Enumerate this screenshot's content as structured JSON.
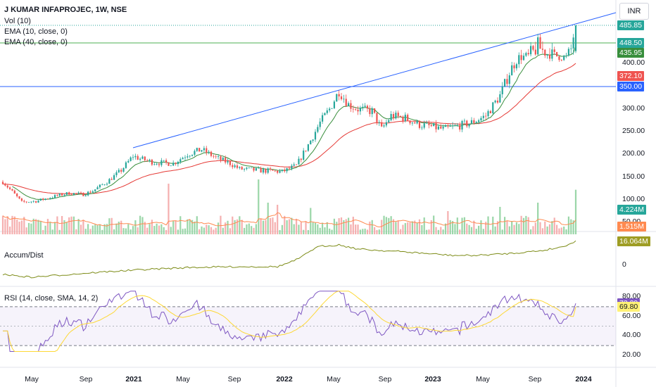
{
  "header": {
    "title": "J KUMAR INFAPROJEC, 1W, NSE",
    "vol": "Vol (10)",
    "ema10": "EMA (10, close, 0)",
    "ema40": "EMA (40, close, 0)",
    "currency": "INR"
  },
  "price_axis": {
    "ticks": [
      {
        "label": "400.00",
        "v": 400
      },
      {
        "label": "300.00",
        "v": 300
      },
      {
        "label": "250.00",
        "v": 250
      },
      {
        "label": "200.00",
        "v": 200
      },
      {
        "label": "150.00",
        "v": 150
      },
      {
        "label": "100.00",
        "v": 100
      },
      {
        "label": "50.00",
        "v": 50
      }
    ],
    "tags": [
      {
        "label": "485.85",
        "v": 485.85,
        "color": "#26a69a"
      },
      {
        "label": "448.50",
        "v": 448.5,
        "color": "#26a69a"
      },
      {
        "label": "435.95",
        "v": 435.95,
        "color": "#388e3c"
      },
      {
        "label": "372.10",
        "v": 372.1,
        "color": "#ef5350"
      },
      {
        "label": "350.00",
        "v": 350,
        "color": "#2962ff"
      }
    ],
    "volume_tags": [
      {
        "label": "4.224M",
        "color": "#26a69a"
      },
      {
        "label": "1.515M",
        "color": "#ff8a50"
      }
    ]
  },
  "accum": {
    "label": "Accum/Dist",
    "tag": "16.064M",
    "tag_color": "#9e9d24",
    "zero_label": "0"
  },
  "rsi": {
    "label": "RSI (14, close, SMA, 14, 2)",
    "ticks": [
      {
        "label": "80.00",
        "v": 80
      },
      {
        "label": "60.00",
        "v": 60
      },
      {
        "label": "40.00",
        "v": 40
      },
      {
        "label": "20.00",
        "v": 20
      }
    ],
    "tags": [
      {
        "label": "73.39",
        "v": 73.39,
        "color": "#7e57c2"
      },
      {
        "label": "69.80",
        "v": 69.8,
        "color": "#fff176",
        "text": "#131722"
      }
    ]
  },
  "time_axis": [
    {
      "label": "May",
      "bold": false
    },
    {
      "label": "Sep",
      "bold": false
    },
    {
      "label": "2021",
      "bold": true
    },
    {
      "label": "May",
      "bold": false
    },
    {
      "label": "Sep",
      "bold": false
    },
    {
      "label": "2022",
      "bold": true
    },
    {
      "label": "May",
      "bold": false
    },
    {
      "label": "Sep",
      "bold": false
    },
    {
      "label": "2023",
      "bold": true
    },
    {
      "label": "May",
      "bold": false
    },
    {
      "label": "Sep",
      "bold": false
    },
    {
      "label": "2024",
      "bold": true
    }
  ],
  "colors": {
    "up": "#26a69a",
    "down": "#ef5350",
    "ema10": "#388e3c",
    "ema40": "#e53935",
    "trendline": "#2962ff",
    "rsi": "#7e57c2",
    "rsi_ma": "#fdd835",
    "ad": "#7c8b16"
  },
  "chart_data": {
    "type": "candlestick",
    "timeframe": "1W",
    "price_keypoints": [
      [
        0,
        140
      ],
      [
        4,
        118
      ],
      [
        8,
        95
      ],
      [
        14,
        97
      ],
      [
        22,
        108
      ],
      [
        28,
        115
      ],
      [
        34,
        112
      ],
      [
        38,
        120
      ],
      [
        44,
        140
      ],
      [
        50,
        165
      ],
      [
        55,
        196
      ],
      [
        58,
        190
      ],
      [
        64,
        182
      ],
      [
        72,
        180
      ],
      [
        78,
        200
      ],
      [
        84,
        210
      ],
      [
        90,
        192
      ],
      [
        96,
        180
      ],
      [
        100,
        168
      ],
      [
        108,
        165
      ],
      [
        118,
        162
      ],
      [
        124,
        175
      ],
      [
        130,
        230
      ],
      [
        134,
        270
      ],
      [
        138,
        300
      ],
      [
        142,
        340
      ],
      [
        146,
        310
      ],
      [
        150,
        300
      ],
      [
        156,
        295
      ],
      [
        160,
        255
      ],
      [
        164,
        285
      ],
      [
        170,
        280
      ],
      [
        176,
        265
      ],
      [
        180,
        262
      ],
      [
        186,
        255
      ],
      [
        192,
        262
      ],
      [
        198,
        270
      ],
      [
        204,
        285
      ],
      [
        210,
        330
      ],
      [
        214,
        380
      ],
      [
        218,
        420
      ],
      [
        222,
        425
      ],
      [
        226,
        445
      ],
      [
        230,
        432
      ],
      [
        234,
        425
      ],
      [
        238,
        420
      ],
      [
        240,
        440
      ],
      [
        242,
        486
      ]
    ],
    "volume_spikes": [
      [
        70,
        4.8
      ],
      [
        108,
        5.2
      ],
      [
        112,
        3.0
      ],
      [
        116,
        2.8
      ],
      [
        130,
        2.5
      ],
      [
        188,
        2.2
      ],
      [
        210,
        2.6
      ],
      [
        226,
        3.0
      ],
      [
        242,
        4.224
      ]
    ],
    "ema_levels": {
      "ema10_last": 435.95,
      "ema40_last": 372.1
    },
    "horizontal_levels": [
      448.5,
      350.0
    ],
    "rsi_range": [
      20,
      80
    ],
    "rsi_last": 73.39,
    "rsi_ma_last": 69.8,
    "accum_dist_last": "16.064M"
  }
}
